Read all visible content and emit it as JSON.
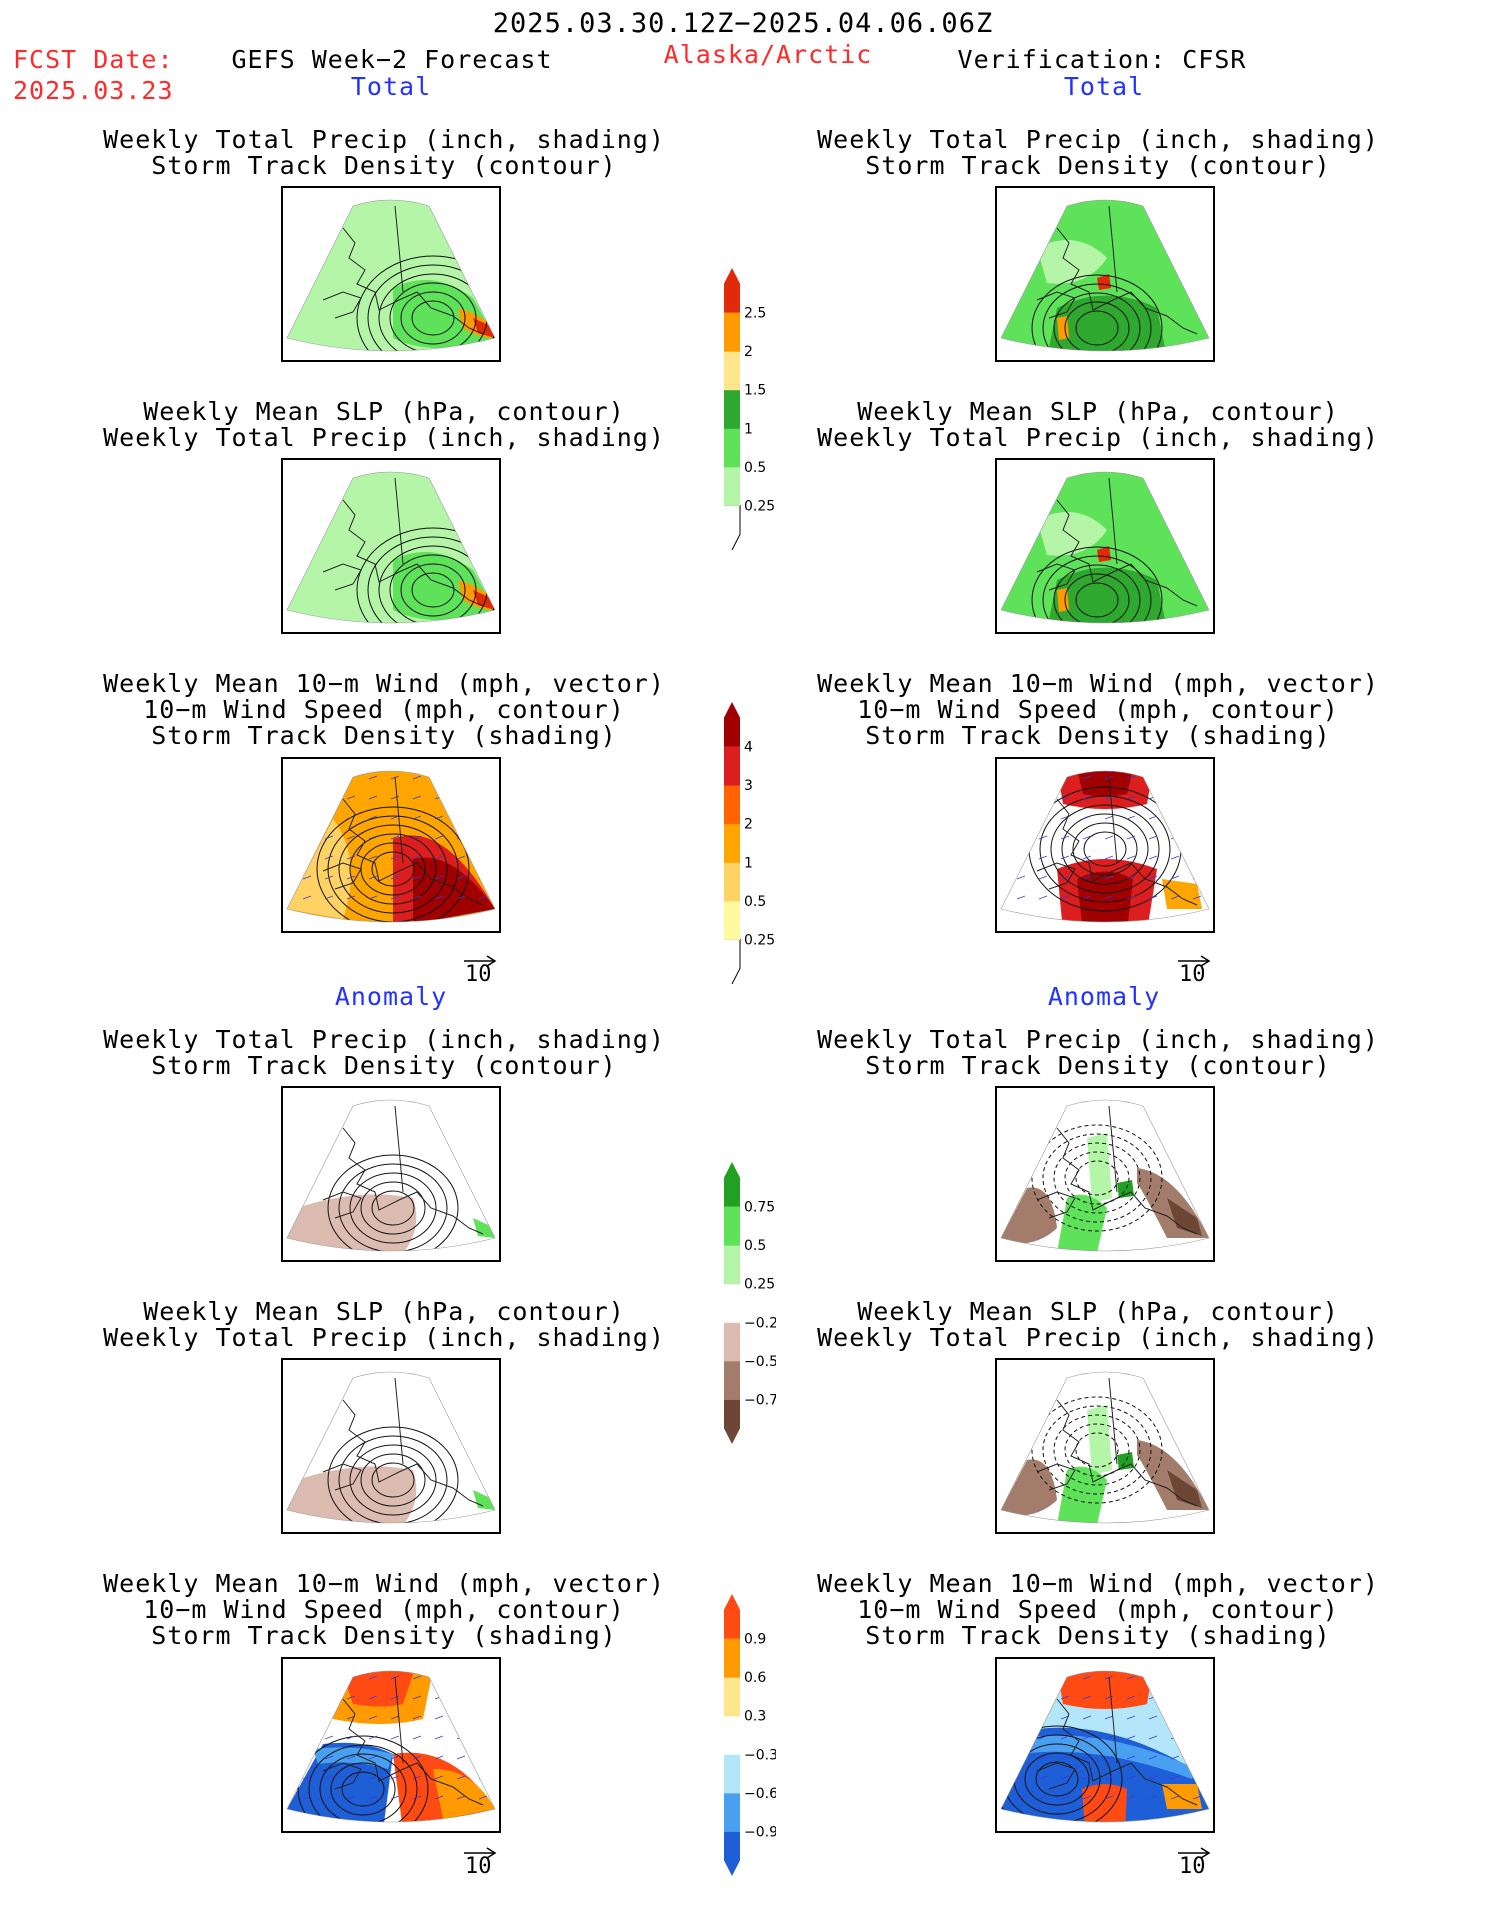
{
  "header": {
    "period": "2025.03.30.12Z−2025.04.06.06Z",
    "region": "Alaska/Arctic",
    "fcst_label": "FCST Date:",
    "fcst_date": "2025.03.23",
    "model": "GEFS Week−2 Forecast",
    "verification": "Verification: CFSR"
  },
  "sections": {
    "total": "Total",
    "anomaly": "Anomaly"
  },
  "panel_titles": {
    "precip_track": [
      "Weekly Total Precip (inch, shading)",
      "Storm Track Density (contour)"
    ],
    "slp_precip": [
      "Weekly Mean SLP (hPa, contour)",
      "Weekly Total Precip (inch, shading)"
    ],
    "wind_track": [
      "Weekly Mean 10−m Wind (mph, vector)",
      "10−m Wind Speed (mph, contour)",
      "Storm Track Density (shading)"
    ]
  },
  "vector_ref": "10",
  "colors": {
    "precip_total": [
      "#b4f5a8",
      "#5ee25a",
      "#2ea82e",
      "#ffe68c",
      "#ff9a00",
      "#e02a0a"
    ],
    "track_total": [
      "#fffaa0",
      "#ffd264",
      "#ffa500",
      "#ff6400",
      "#dc1e1e",
      "#a00000"
    ],
    "precip_anom": [
      "#6e4636",
      "#a47c6c",
      "#dcbcb0",
      "#ffffff",
      "#b4f5a8",
      "#5ee25a",
      "#22a022"
    ],
    "track_anom": [
      "#1e5fd8",
      "#4aa0f0",
      "#b4e6fa",
      "#ffffff",
      "#ffe68c",
      "#ff9a00",
      "#ff4a14"
    ]
  },
  "chart_data": [
    {
      "type": "heatmap",
      "title": "Total: Precip & Storm Track Density (colorbar)",
      "levels": [
        "0.25",
        "0.5",
        "1",
        "1.5",
        "2",
        "2.5"
      ]
    },
    {
      "type": "heatmap",
      "title": "Total: Storm Track Density (colorbar)",
      "levels": [
        "0.25",
        "0.5",
        "1",
        "2",
        "3",
        "4"
      ]
    },
    {
      "type": "heatmap",
      "title": "Anomaly: Precip (colorbar)",
      "levels": [
        "−0.75",
        "−0.5",
        "−0.25",
        "0.25",
        "0.5",
        "0.75"
      ]
    },
    {
      "type": "heatmap",
      "title": "Anomaly: Storm Track Density (colorbar)",
      "levels": [
        "−0.9",
        "−0.6",
        "−0.3",
        "0.3",
        "0.6",
        "0.9"
      ]
    }
  ]
}
